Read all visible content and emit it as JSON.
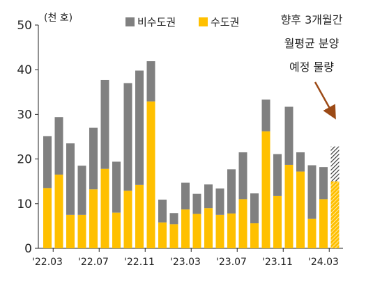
{
  "chart_data": {
    "type": "bar",
    "stacked": true,
    "unit_label": "(천 호)",
    "ylim": [
      0,
      50
    ],
    "yticks": [
      "0",
      "10",
      "20",
      "30",
      "40",
      "50"
    ],
    "x_tick_labels": [
      "'22.03",
      "'22.07",
      "'22.11",
      "'23.03",
      "'23.07",
      "'23.11",
      "'24.03"
    ],
    "x_tick_category_index": [
      0,
      4,
      8,
      12,
      16,
      20,
      24
    ],
    "categories": [
      "'22.03",
      "'22.04",
      "'22.05",
      "'22.06",
      "'22.07",
      "'22.08",
      "'22.09",
      "'22.10",
      "'22.11",
      "'22.12",
      "'23.01",
      "'23.02",
      "'23.03",
      "'23.04",
      "'23.05",
      "'23.06",
      "'23.07",
      "'23.08",
      "'23.09",
      "'23.10",
      "'23.11",
      "'23.12",
      "'24.01",
      "'24.02",
      "'24.03"
    ],
    "series": [
      {
        "name": "수도권",
        "color": "#FFC000",
        "values": [
          13.5,
          16.5,
          7.5,
          7.5,
          13.2,
          17.8,
          8.0,
          12.9,
          14.2,
          32.9,
          5.8,
          5.4,
          8.7,
          7.7,
          9.0,
          7.5,
          7.8,
          11.0,
          5.6,
          26.2,
          11.7,
          18.7,
          17.2,
          6.6,
          11.0
        ]
      },
      {
        "name": "비수도권",
        "color": "#808080",
        "values": [
          11.6,
          12.9,
          16.0,
          11.0,
          13.8,
          19.9,
          11.4,
          24.1,
          25.6,
          9.0,
          5.1,
          2.5,
          6.0,
          4.5,
          5.3,
          5.9,
          9.9,
          10.5,
          6.7,
          7.1,
          9.4,
          13.0,
          4.3,
          12.0,
          7.2
        ]
      }
    ],
    "projection": {
      "label": "향후 3개월간 월평균 분양 예정 물량",
      "lines": [
        "향후 3개월간",
        "월평균 분양",
        "예정 물량"
      ],
      "capital": 15.0,
      "non_capital": 7.8
    }
  }
}
